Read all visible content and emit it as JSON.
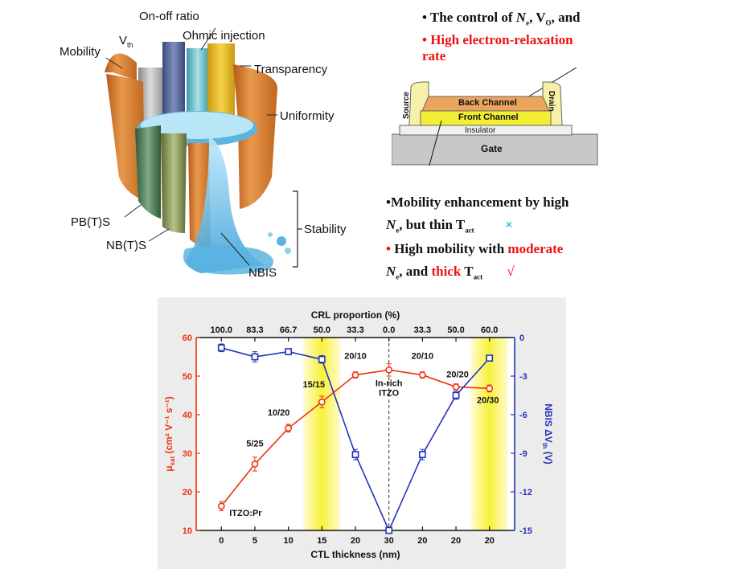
{
  "bucket": {
    "labels": {
      "mobility": "Mobility",
      "vth_main": "V",
      "vth_sub": "th",
      "on_off": "On-off ratio",
      "ohmic": "Ohmic injection",
      "transparency": "Transparency",
      "uniformity": "Uniformity",
      "stability": "Stability",
      "pbts": "PB(T)S",
      "nbts": "NB(T)S",
      "nbis": "NBIS"
    }
  },
  "device": {
    "source": "Source",
    "drain": "Drain",
    "back_channel": "Back Channel",
    "front_channel": "Front Channel",
    "insulator": "Insulator",
    "gate": "Gate"
  },
  "bullets": {
    "b1_prefix": "• The control of ",
    "b1_ne": "N",
    "b1_ne_sub": "e",
    "b1_mid": ", V",
    "b1_vo_sub": "O",
    "b1_end": ", and",
    "b2_line1": "• High electron-relaxation",
    "b2_line2": "rate",
    "b3_line1": "•Mobility enhancement by high",
    "b3_ne": "N",
    "b3_ne_sub": "e",
    "b3_mid": ", but thin T",
    "b3_t_sub": "act",
    "b3_mark": "×",
    "b4_bullet": "•",
    "b4_text": " High mobility with ",
    "b4_moderate": "moderate",
    "b5_ne": "N",
    "b5_ne_sub": "e",
    "b5_mid": ", and ",
    "b5_thick": "thick",
    "b5_t": " T",
    "b5_t_sub": "act",
    "b5_mark": "√"
  },
  "chart_data": {
    "type": "line",
    "top_axis_title": "CRL proportion (%)",
    "top_ticks": [
      "100.0",
      "83.3",
      "66.7",
      "50.0",
      "33.3",
      "0.0",
      "33.3",
      "50.0",
      "60.0"
    ],
    "xlabel": "CTL thickness (nm)",
    "x_ticks": [
      "0",
      "5",
      "10",
      "15",
      "20",
      "30",
      "20",
      "20",
      "20"
    ],
    "ylabel_left_main": "μ",
    "ylabel_left_sub": "sat",
    "ylabel_left_units": " (cm² V⁻¹ s⁻¹)",
    "ylabel_right_main": "NBIS ΔV",
    "ylabel_right_sub": "th",
    "ylabel_right_units": " (V)",
    "left_ylim": [
      10,
      60
    ],
    "left_ticks": [
      "10",
      "20",
      "30",
      "40",
      "50",
      "60"
    ],
    "right_ylim": [
      -15,
      0
    ],
    "right_ticks": [
      "-15",
      "-12",
      "-9",
      "-6",
      "-3",
      "0"
    ],
    "highlight_bands": [
      3,
      8
    ],
    "divider_index": 5,
    "series": [
      {
        "color": "#ee3311",
        "axis": "left",
        "values": [
          16.3,
          27.2,
          36.5,
          43.3,
          50.3,
          51.6,
          50.3,
          47.2,
          46.8
        ],
        "errors": [
          1.2,
          1.8,
          1.0,
          1.5,
          0.8,
          1.6,
          0.8,
          0.8,
          0.9
        ]
      },
      {
        "color": "#2233bb",
        "axis": "right",
        "values": [
          -0.8,
          -1.5,
          -1.1,
          -1.7,
          -9.1,
          -15.0,
          -9.1,
          -4.5,
          -1.6
        ],
        "errors": [
          0.3,
          0.4,
          0.2,
          0.3,
          0.4,
          0.1,
          0.4,
          0.3,
          0.2
        ]
      }
    ],
    "point_labels": [
      "ITZO:Pr",
      "5/25",
      "10/20",
      "15/15",
      "20/10",
      "In-rich",
      "ITZO",
      "20/10",
      "20/20",
      "20/30"
    ]
  }
}
